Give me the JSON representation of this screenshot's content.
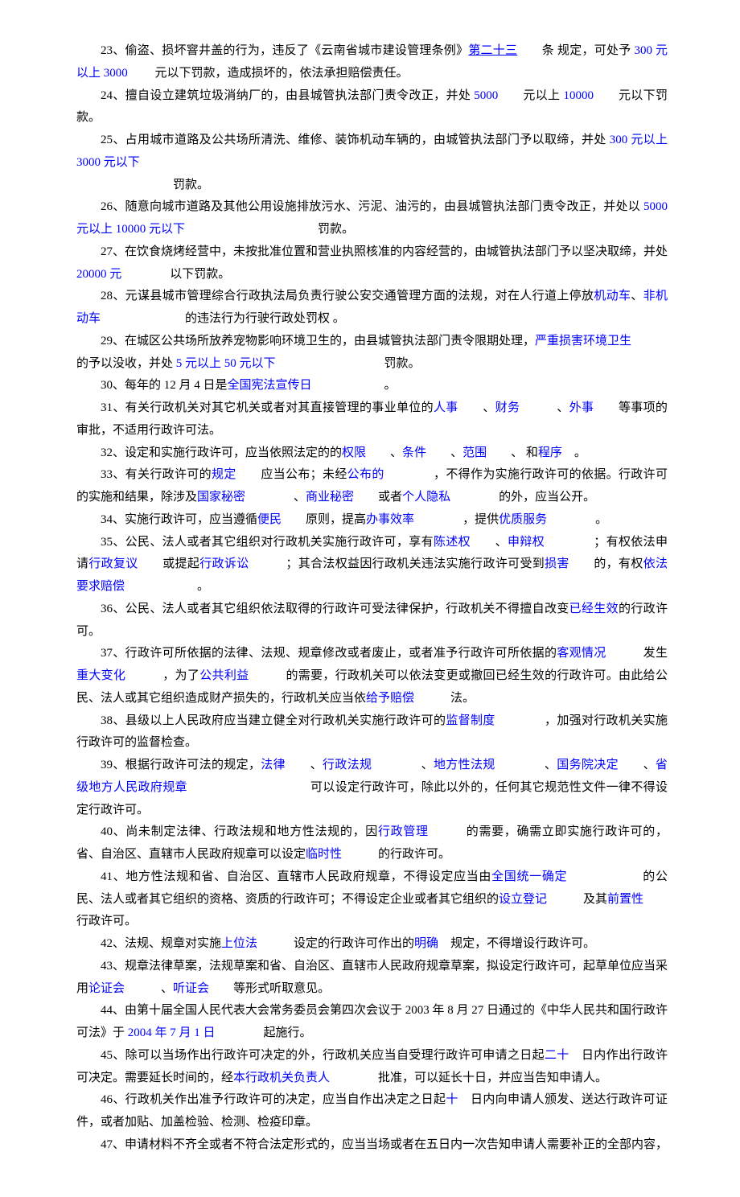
{
  "colors": {
    "text": "#000000",
    "link": "#0000ff",
    "background": "#ffffff"
  },
  "typography": {
    "font_family": "SimSun",
    "font_size_pt": 15,
    "line_height": 1.85
  },
  "items": {
    "i23": {
      "p1": "23、偷盗、损坏窨井盖的行为，违反了《云南省城市建设管理条例》",
      "a1": "第二十三",
      "p2": "　　条 规定，可处予 ",
      "a2": "300 元以上 3000 ",
      "p3": "　　元以下罚款，造成损坏的，依法承担赔偿责任。"
    },
    "i24": {
      "p1": "24、擅自设立建筑垃圾消纳厂的，由县城管执法部门责令改正，并处 ",
      "a1": "5000",
      "p2": "　　元以上 ",
      "a2": "10000",
      "p3": "　　元以下罚款。"
    },
    "i25": {
      "p1": "25、占用城市道路及公共场所清洗、维修、装饰机动车辆的，由城管执法部门予以取缔，并处 ",
      "a1": "300 元以上 3000 元以下",
      "line2": "　　　　　　　　罚款。"
    },
    "i26": {
      "p1": "26、随意向城市道路及其他公用设施排放污水、污泥、油污的，由县城管执法部门责令改正，并处以 ",
      "a1": "5000 元以上 10000 元以下",
      "p2": "　　　　　　　　　　　罚款。"
    },
    "i27": {
      "p1": "27、在饮食烧烤经营中，未按批准位置和营业执照核准的内容经营的，由城管执法部门予以坚决取缔，并处 ",
      "a1": "20000 元",
      "p2": "　　　　以下罚款。"
    },
    "i28": {
      "p1": "28、元谋县城市管理综合行政执法局负责行驶公安交通管理方面的法规，对在人行道上停放",
      "a1": "机动车",
      "p2": "、",
      "a2": "非机动车",
      "p3": "　　　　　　　的违法行为行驶行政处罚权 。"
    },
    "i29": {
      "p1": "29、在城区公共场所放养宠物影响环境卫生的，由县城管执法部门责令限期处理，",
      "a1": "严重损害环境卫生",
      "p2": "　　　　　　　　　　的予以没收，并处 ",
      "a2": "5 元以上 50 元以下",
      "p3": "　　　　　　　　　罚款。"
    },
    "i30": {
      "p1": "30、每年的 12 月 4 日是",
      "a1": "全国宪法宣传日",
      "p2": "　　　　　　。"
    },
    "i31": {
      "p1": "31、有关行政机关对其它机关或者对其直接管理的事业单位的",
      "a1": "人事",
      "p2": "　　、",
      "a2": "财务",
      "p3": "　　　、",
      "a3": "外事",
      "p4": "　　等事项的审批，不适用行政许可法。"
    },
    "i32": {
      "p1": "32、设定和实施行政许可，应当依照法定的的",
      "a1": "权限",
      "p2": "　　、",
      "a2": "条件",
      "p3": "　　、",
      "a3": "范围",
      "p4": "　　、 和",
      "a4": "程序",
      "p5": "　。"
    },
    "i33": {
      "p1": "33、有关行政许可的",
      "a1": "规定",
      "p2": "　　应当公布；未经",
      "a2": "公布的",
      "p3": "　　　　，不得作为实施行政许可的依据。行政许可的实施和结果，除涉及",
      "a3": "国家秘密",
      "p4": "　　　　、",
      "a4": "商业秘密",
      "p5": "　　或者",
      "a5": "个人隐私",
      "p6": "　　　　的外，应当公开。"
    },
    "i34": {
      "p1": "34、实施行政许可，应当遵循",
      "a1": "便民",
      "p2": "　　原则，提高",
      "a2": "办事效率",
      "p3": "　　　　，提供",
      "a3": "优质服务",
      "p4": "　　　　。"
    },
    "i35": {
      "p1": "35、公民、法人或者其它组织对行政机关实施行政许可，享有",
      "a1": "陈述权",
      "p2": "　　、",
      "a2": "申辩权",
      "p3": "　　　　；有权依法申请",
      "a3": "行政复议",
      "p4": "　　或提起",
      "a4": "行政诉讼",
      "p5": "　　　；其合法权益因行政机关违法实施行政许可受到",
      "a5": "损害",
      "p6": "　　的，有权",
      "a6": "依法要求赔偿",
      "p7": "　　　　　　。"
    },
    "i36": {
      "p1": "36、公民、法人或者其它组织依法取得的行政许可受法律保护，行政机关不得擅自改变",
      "a1": "已经生效",
      "p2": "的行政许可。"
    },
    "i37": {
      "p1": "37、行政许可所依据的法律、法规、规章修改或者废止，或者准予行政许可所依据的",
      "a1": "客观情况",
      "p2": "　　　发生",
      "a2": "重大变化",
      "p3": "　　　，为了",
      "a3": "公共利益",
      "p4": "　　　的需要，行政机关可以依法变更或撤回已经生效的行政许可。由此给公民、法人或其它组织造成财产损失的，行政机关应当依",
      "a4": "给予赔偿",
      "p5": "　　　法。"
    },
    "i38": {
      "p1": "38、县级以上人民政府应当建立健全对行政机关实施行政许可的",
      "a1": "监督制度",
      "p2": "　　　　，加强对行政机关实施行政许可的监督检查。"
    },
    "i39": {
      "p1": "39、根据行政许可法的规定，",
      "a1": "法律",
      "p2": "　　、",
      "a2": "行政法规",
      "p3": "　　　　、",
      "a3": "地方性法规",
      "p4": "　　　　、",
      "a4": "国务院决定",
      "p5": "　　、",
      "a5": "省级地方人民政府规章",
      "p6": "　　　　　　　　　　可以设定行政许可，除此以外的，任何其它规范性文件一律不得设定行政许可。"
    },
    "i40": {
      "p1": "40、尚未制定法律、行政法规和地方性法规的，因",
      "a1": "行政管理",
      "p2": "　　　的需要，确需立即实施行政许可的，省、自治区、直辖市人民政府规章可以设定",
      "a2": "临时性",
      "p3": "　　　的行政许可。"
    },
    "i41": {
      "p1": "41、地方性法规和省、自治区、直辖市人民政府规章，不得设定应当由",
      "a1": "全国统一确定",
      "p2": "　　　　　　的公民、法人或者其它组织的资格、资质的行政许可；不得设定企业或者其它组织的",
      "a2": "设立登记",
      "p3": "　　　及其",
      "a3": "前置性",
      "p4": "　　行政许可。"
    },
    "i42": {
      "p1": "42、法规、规章对实施",
      "a1": "上位法",
      "p2": "　　　设定的行政许可作出的",
      "a2": "明确",
      "p3": "　规定，不得增设行政许可。"
    },
    "i43": {
      "p1": "43、规章法律草案，法规草案和省、自治区、直辖市人民政府规章草案，拟设定行政许可，起草单位应当采用",
      "a1": "论证会",
      "p2": "　　　、",
      "a2": "听证会",
      "p3": "　　等形式听取意见。"
    },
    "i44": {
      "p1": "44、由第十届全国人民代表大会常务委员会第四次会议于 2003 年 8 月 27 日通过的《中华人民共和国行政许可法》于 ",
      "a1": "2004 年 7 月 1 日",
      "p2": "　　　　起施行。"
    },
    "i45": {
      "p1": "45、除可以当场作出行政许可决定的外，行政机关应当自受理行政许可申请之日起",
      "a1": "二十",
      "p2": "　日内作出行政许可决定。需要延长时间的，经",
      "a2": "本行政机关负责人",
      "p3": "　　　　批准，可以延长十日，并应当告知申请人。"
    },
    "i46": {
      "p1": "46、行政机关作出准予行政许可的决定，应当自作出决定之日起",
      "a1": "十",
      "p2": "　日内向申请人颁发、送达行政许可证件，或者加贴、加盖检验、检测、检疫印章。"
    },
    "i47": {
      "p1": "47、申请材料不齐全或者不符合法定形式的，应当当场或者在五日内一次告知申请人需要补正的全部内容，"
    }
  }
}
